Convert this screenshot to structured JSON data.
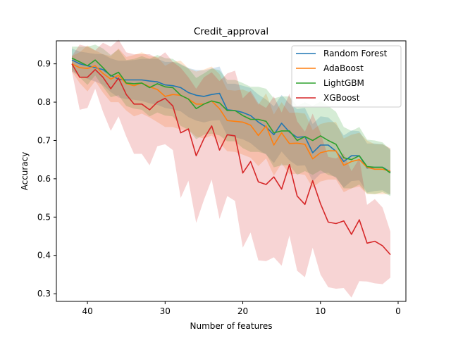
{
  "chart_data": {
    "type": "line",
    "title": "Credit_approval",
    "xlabel": "Number of features",
    "ylabel": "Accuracy",
    "xlim": [
      44,
      -1
    ],
    "ylim": [
      0.28,
      0.96
    ],
    "x_ticks": [
      40,
      30,
      20,
      10,
      0
    ],
    "y_ticks": [
      0.3,
      0.4,
      0.5,
      0.6,
      0.7,
      0.8,
      0.9
    ],
    "legend_position": "top-right",
    "grid": false,
    "x": [
      42,
      41,
      40,
      39,
      38,
      37,
      36,
      35,
      34,
      33,
      32,
      31,
      30,
      29,
      28,
      27,
      26,
      25,
      24,
      23,
      22,
      21,
      20,
      19,
      18,
      17,
      16,
      15,
      14,
      13,
      12,
      11,
      10,
      9,
      8,
      7,
      6,
      5,
      4,
      3,
      2,
      1
    ],
    "series": [
      {
        "name": "Random Forest",
        "color": "#1f77b4",
        "band_color": "#1f77b4",
        "values": [
          0.91,
          0.9,
          0.895,
          0.89,
          0.885,
          0.87,
          0.86,
          0.858,
          0.858,
          0.858,
          0.855,
          0.853,
          0.845,
          0.843,
          0.838,
          0.825,
          0.818,
          0.815,
          0.82,
          0.823,
          0.78,
          0.778,
          0.773,
          0.765,
          0.748,
          0.735,
          0.715,
          0.745,
          0.722,
          0.708,
          0.71,
          0.668,
          0.688,
          0.688,
          0.672,
          0.645,
          0.66,
          0.66,
          0.628,
          0.63,
          0.63,
          0.618
        ],
        "band_half": [
          0.03,
          0.032,
          0.034,
          0.036,
          0.04,
          0.044,
          0.048,
          0.05,
          0.052,
          0.055,
          0.058,
          0.06,
          0.06,
          0.062,
          0.062,
          0.064,
          0.066,
          0.068,
          0.068,
          0.07,
          0.068,
          0.07,
          0.07,
          0.072,
          0.072,
          0.072,
          0.074,
          0.074,
          0.074,
          0.074,
          0.075,
          0.075,
          0.075,
          0.072,
          0.07,
          0.068,
          0.066,
          0.064,
          0.064,
          0.062,
          0.06,
          0.06
        ]
      },
      {
        "name": "AdaBoost",
        "color": "#ff7f0e",
        "band_color": "#ff7f0e",
        "values": [
          0.9,
          0.89,
          0.888,
          0.895,
          0.875,
          0.86,
          0.87,
          0.848,
          0.843,
          0.85,
          0.84,
          0.833,
          0.815,
          0.82,
          0.818,
          0.808,
          0.795,
          0.795,
          0.803,
          0.783,
          0.752,
          0.75,
          0.748,
          0.74,
          0.713,
          0.738,
          0.688,
          0.72,
          0.692,
          0.693,
          0.69,
          0.652,
          0.668,
          0.673,
          0.673,
          0.635,
          0.645,
          0.65,
          0.63,
          0.625,
          0.625,
          0.62
        ],
        "band_half": [
          0.02,
          0.04,
          0.06,
          0.04,
          0.05,
          0.06,
          0.07,
          0.07,
          0.08,
          0.08,
          0.08,
          0.085,
          0.08,
          0.085,
          0.09,
          0.08,
          0.085,
          0.09,
          0.09,
          0.09,
          0.08,
          0.08,
          0.085,
          0.085,
          0.08,
          0.085,
          0.08,
          0.08,
          0.08,
          0.08,
          0.08,
          0.075,
          0.075,
          0.075,
          0.075,
          0.07,
          0.07,
          0.07,
          0.07,
          0.065,
          0.065,
          0.06
        ]
      },
      {
        "name": "LightGBM",
        "color": "#2ca02c",
        "band_color": "#2ca02c",
        "values": [
          0.915,
          0.905,
          0.895,
          0.91,
          0.89,
          0.868,
          0.878,
          0.85,
          0.848,
          0.85,
          0.838,
          0.848,
          0.84,
          0.838,
          0.818,
          0.808,
          0.783,
          0.795,
          0.803,
          0.798,
          0.778,
          0.778,
          0.765,
          0.755,
          0.755,
          0.75,
          0.72,
          0.725,
          0.725,
          0.7,
          0.71,
          0.7,
          0.712,
          0.7,
          0.69,
          0.655,
          0.65,
          0.66,
          0.632,
          0.63,
          0.63,
          0.615
        ],
        "band_half": [
          0.03,
          0.04,
          0.05,
          0.04,
          0.05,
          0.055,
          0.06,
          0.06,
          0.065,
          0.07,
          0.075,
          0.075,
          0.075,
          0.075,
          0.08,
          0.08,
          0.08,
          0.08,
          0.085,
          0.085,
          0.08,
          0.08,
          0.085,
          0.085,
          0.085,
          0.085,
          0.09,
          0.09,
          0.09,
          0.09,
          0.09,
          0.09,
          0.09,
          0.09,
          0.085,
          0.08,
          0.075,
          0.075,
          0.07,
          0.07,
          0.065,
          0.06
        ]
      },
      {
        "name": "XGBoost",
        "color": "#d62728",
        "band_color": "#d62728",
        "values": [
          0.9,
          0.865,
          0.865,
          0.885,
          0.865,
          0.835,
          0.863,
          0.82,
          0.795,
          0.795,
          0.78,
          0.8,
          0.81,
          0.79,
          0.72,
          0.73,
          0.66,
          0.705,
          0.738,
          0.675,
          0.715,
          0.712,
          0.615,
          0.645,
          0.592,
          0.585,
          0.605,
          0.573,
          0.637,
          0.555,
          0.533,
          0.595,
          0.535,
          0.487,
          0.483,
          0.49,
          0.455,
          0.493,
          0.432,
          0.437,
          0.425,
          0.402
        ],
        "band_half": [
          0.02,
          0.085,
          0.08,
          0.05,
          0.09,
          0.11,
          0.1,
          0.11,
          0.13,
          0.13,
          0.145,
          0.115,
          0.12,
          0.115,
          0.17,
          0.135,
          0.175,
          0.16,
          0.14,
          0.18,
          0.16,
          0.17,
          0.195,
          0.185,
          0.205,
          0.2,
          0.21,
          0.2,
          0.185,
          0.195,
          0.19,
          0.175,
          0.185,
          0.17,
          0.17,
          0.175,
          0.165,
          0.16,
          0.1,
          0.11,
          0.1,
          0.06
        ]
      }
    ]
  }
}
